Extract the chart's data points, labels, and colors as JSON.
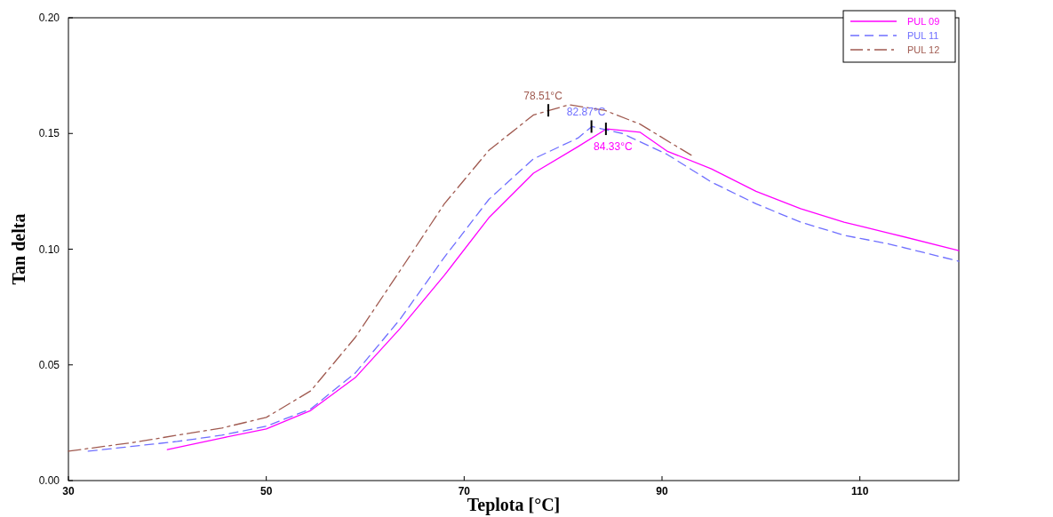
{
  "chart_data": {
    "type": "line",
    "xlabel": "Teplota [°C]",
    "ylabel": "Tan delta",
    "xlim": [
      30,
      120
    ],
    "xticks": [
      30,
      50,
      70,
      90,
      110
    ],
    "ylim": [
      0,
      0.2
    ],
    "yticks": [
      {
        "value": 0,
        "label": "0.00"
      },
      {
        "value": 0.05,
        "label": "0.05"
      },
      {
        "value": 0.1,
        "label": "0.10"
      },
      {
        "value": 0.15,
        "label": "0.15"
      },
      {
        "value": 0.2,
        "label": "0.20"
      }
    ],
    "grid": false,
    "legend": "top right",
    "marker": "none",
    "series": [
      {
        "name": "PUL 09",
        "color": "#ff00ff",
        "line_style": "solid",
        "x": [
          40,
          45.5,
          50,
          54.5,
          59,
          63.5,
          68,
          72.5,
          77,
          81.5,
          84.4,
          87.8,
          90.5,
          95,
          99.5,
          104,
          108.4,
          112.9,
          120
        ],
        "values": [
          0.0134,
          0.0184,
          0.0223,
          0.0303,
          0.0445,
          0.0656,
          0.0887,
          0.1136,
          0.1328,
          0.1443,
          0.152,
          0.1505,
          0.1424,
          0.1347,
          0.125,
          0.1175,
          0.1117,
          0.107,
          0.0994
        ]
      },
      {
        "name": "PUL 11",
        "color": "#6f6fff",
        "line_style": "dashed",
        "x": [
          32,
          41,
          45.5,
          50,
          54.5,
          59,
          63.5,
          68,
          72.5,
          77,
          81.5,
          82.9,
          86,
          90.5,
          95,
          99.5,
          104,
          108.4,
          112.9,
          120
        ],
        "values": [
          0.0127,
          0.0169,
          0.0196,
          0.0235,
          0.031,
          0.0465,
          0.0696,
          0.0965,
          0.1215,
          0.139,
          0.148,
          0.153,
          0.15,
          0.141,
          0.129,
          0.1196,
          0.1117,
          0.106,
          0.1023,
          0.0948
        ]
      },
      {
        "name": "PUL 12",
        "color": "#a05a50",
        "line_style": "dashdot",
        "x": [
          30,
          36.6,
          41,
          45.5,
          50,
          54.5,
          59,
          63.5,
          68,
          72.5,
          77,
          80.6,
          84.2,
          87.8,
          91.4,
          93.2
        ],
        "values": [
          0.0127,
          0.0165,
          0.0196,
          0.0227,
          0.0273,
          0.0388,
          0.0619,
          0.0906,
          0.1196,
          0.1427,
          0.158,
          0.1624,
          0.16,
          0.154,
          0.1446,
          0.14
        ]
      }
    ],
    "annotations": [
      {
        "text": "84.33°C",
        "x": 84.33,
        "y": 0.152
      },
      {
        "text": "82.87°C",
        "x": 82.87,
        "y": 0.153
      },
      {
        "text": "78.51°C",
        "x": 78.51,
        "y": 0.16
      }
    ]
  }
}
